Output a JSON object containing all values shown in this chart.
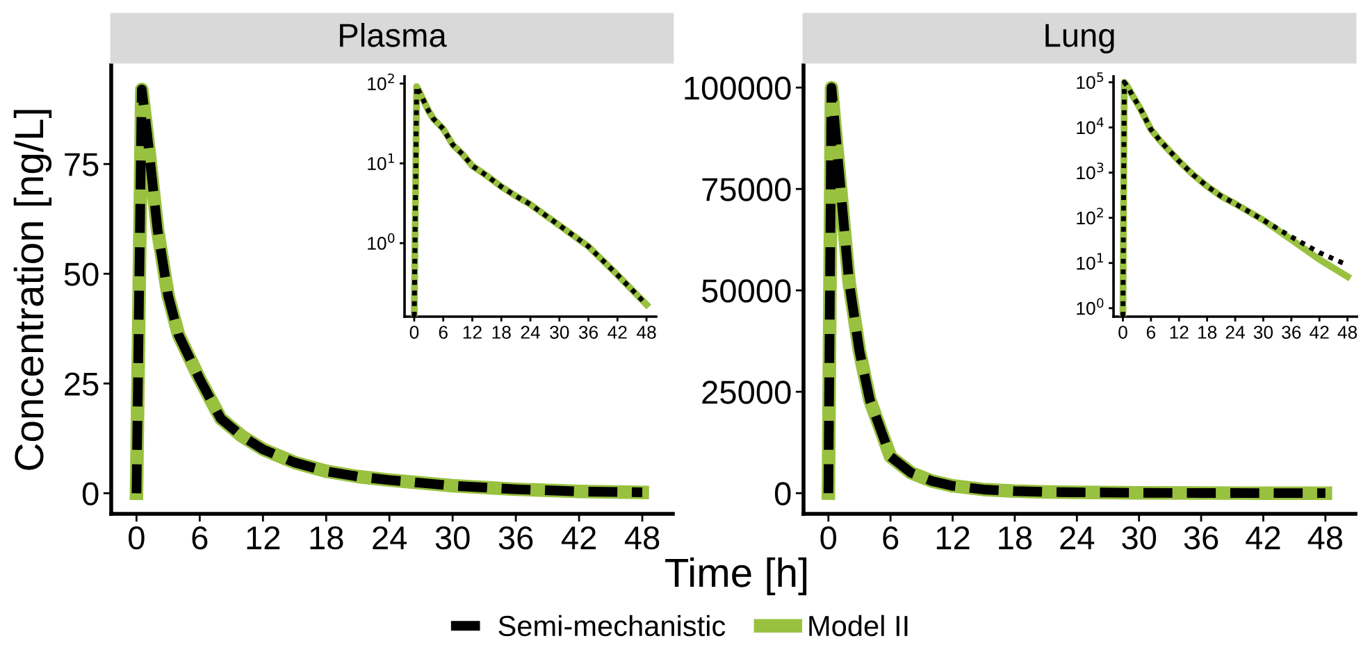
{
  "chart_data": [
    {
      "type": "line",
      "title": "Plasma",
      "xlabel": "Time [h]",
      "ylabel": "Concentration [ng/L]",
      "legend": "bottom",
      "marker": "none",
      "grid": false,
      "x": [
        0,
        0.5,
        1,
        2,
        3,
        4,
        6,
        8,
        10,
        12,
        15,
        18,
        21,
        24,
        30,
        36,
        42,
        48
      ],
      "xlim": [
        -2.4,
        50.9
      ],
      "xticks": [
        0,
        6,
        12,
        18,
        24,
        30,
        36,
        42,
        48
      ],
      "ylim": [
        -4.7,
        97.5
      ],
      "yticks": [
        0,
        25,
        50,
        75
      ],
      "series": [
        {
          "name": "Semi-mechanistic",
          "color": "#000000",
          "line_style": "dashed",
          "values": [
            0,
            92,
            82,
            60,
            45,
            36,
            26,
            17,
            13,
            10,
            7,
            5,
            3.8,
            3,
            1.7,
            0.9,
            0.4,
            0.2
          ]
        },
        {
          "name": "Model II",
          "color": "#99c140",
          "line_style": "solid",
          "values": [
            0,
            92,
            82,
            60,
            45,
            36,
            26,
            17,
            13,
            10,
            7,
            5,
            3.8,
            3,
            1.7,
            0.9,
            0.4,
            0.2
          ]
        }
      ]
    },
    {
      "type": "line",
      "log": "y",
      "marker": "none",
      "grid": false,
      "x": [
        0,
        0.5,
        1,
        2,
        3,
        4,
        6,
        8,
        10,
        12,
        15,
        18,
        21,
        24,
        30,
        36,
        42,
        48
      ],
      "xlim": [
        -2,
        50
      ],
      "xticks": [
        0,
        6,
        12,
        18,
        24,
        30,
        36,
        42,
        48
      ],
      "ylim": [
        0.12,
        123
      ],
      "yticks": [
        {
          "value": 1,
          "label": "10$^{0}$"
        },
        {
          "value": 10,
          "label": "10$^{1}$"
        },
        {
          "value": 100,
          "label": "10$^{2}$"
        }
      ],
      "series": [
        {
          "color": "#000000",
          "line_style": "dotted",
          "values": [
            0.12,
            92,
            80,
            60,
            45,
            36,
            27,
            17,
            13,
            9.3,
            7,
            5.1,
            3.9,
            3.06,
            1.67,
            0.91,
            0.4,
            0.17
          ]
        },
        {
          "color": "#99c140",
          "line_style": "solid",
          "values": [
            0.12,
            92,
            80,
            60,
            45,
            36,
            27,
            17,
            13,
            9.3,
            7,
            5.1,
            3.9,
            3.06,
            1.67,
            0.91,
            0.4,
            0.17
          ]
        }
      ]
    },
    {
      "type": "line",
      "title": "Lung",
      "marker": "none",
      "grid": false,
      "x": [
        0,
        0.3,
        1,
        2,
        3,
        4,
        6,
        8,
        10,
        12,
        15,
        18,
        21,
        24,
        30,
        36,
        42,
        48
      ],
      "xlim": [
        -2.4,
        50.9
      ],
      "xticks": [
        0,
        6,
        12,
        18,
        24,
        30,
        36,
        42,
        48
      ],
      "ylim": [
        -5100,
        105500
      ],
      "yticks": [
        0,
        25000,
        50000,
        75000,
        100000
      ],
      "series": [
        {
          "color": "#000000",
          "line_style": "dashed",
          "values": [
            0,
            100000,
            80000,
            52000,
            35000,
            23000,
            9000,
            5000,
            3000,
            1800,
            900,
            500,
            300,
            200,
            90,
            40,
            20,
            10
          ]
        },
        {
          "color": "#99c140",
          "line_style": "solid",
          "values": [
            0,
            100000,
            80000,
            52000,
            35000,
            23000,
            9000,
            5000,
            3000,
            1800,
            900,
            500,
            300,
            200,
            90,
            30,
            10,
            5
          ]
        }
      ]
    },
    {
      "type": "line",
      "log": "y",
      "marker": "none",
      "grid": false,
      "x": [
        0,
        0.3,
        1,
        2,
        3,
        4,
        6,
        8,
        10,
        12,
        15,
        18,
        21,
        24,
        30,
        36,
        42,
        48
      ],
      "xlim": [
        -2,
        50
      ],
      "xticks": [
        0,
        6,
        12,
        18,
        24,
        30,
        36,
        42,
        48
      ],
      "ylim": [
        0.65,
        135000
      ],
      "yticks": [
        {
          "value": 1,
          "label": "10$^{0}$"
        },
        {
          "value": 10,
          "label": "10$^{1}$"
        },
        {
          "value": 100,
          "label": "10$^{2}$"
        },
        {
          "value": 1000,
          "label": "10$^{3}$"
        },
        {
          "value": 10000,
          "label": "10$^{4}$"
        },
        {
          "value": 100000,
          "label": "10$^{5}$"
        }
      ],
      "series": [
        {
          "color": "#000000",
          "line_style": "dotted",
          "values": [
            0.65,
            100000,
            80000,
            52000,
            35000,
            23000,
            9000,
            5000,
            3000,
            1800,
            900,
            500,
            300,
            205,
            89,
            38,
            17,
            9
          ]
        },
        {
          "color": "#99c140",
          "line_style": "solid",
          "values": [
            0.65,
            100000,
            80000,
            52000,
            35000,
            23000,
            9000,
            5000,
            3000,
            1800,
            900,
            500,
            300,
            205,
            89,
            33,
            12,
            5
          ]
        }
      ]
    }
  ]
}
